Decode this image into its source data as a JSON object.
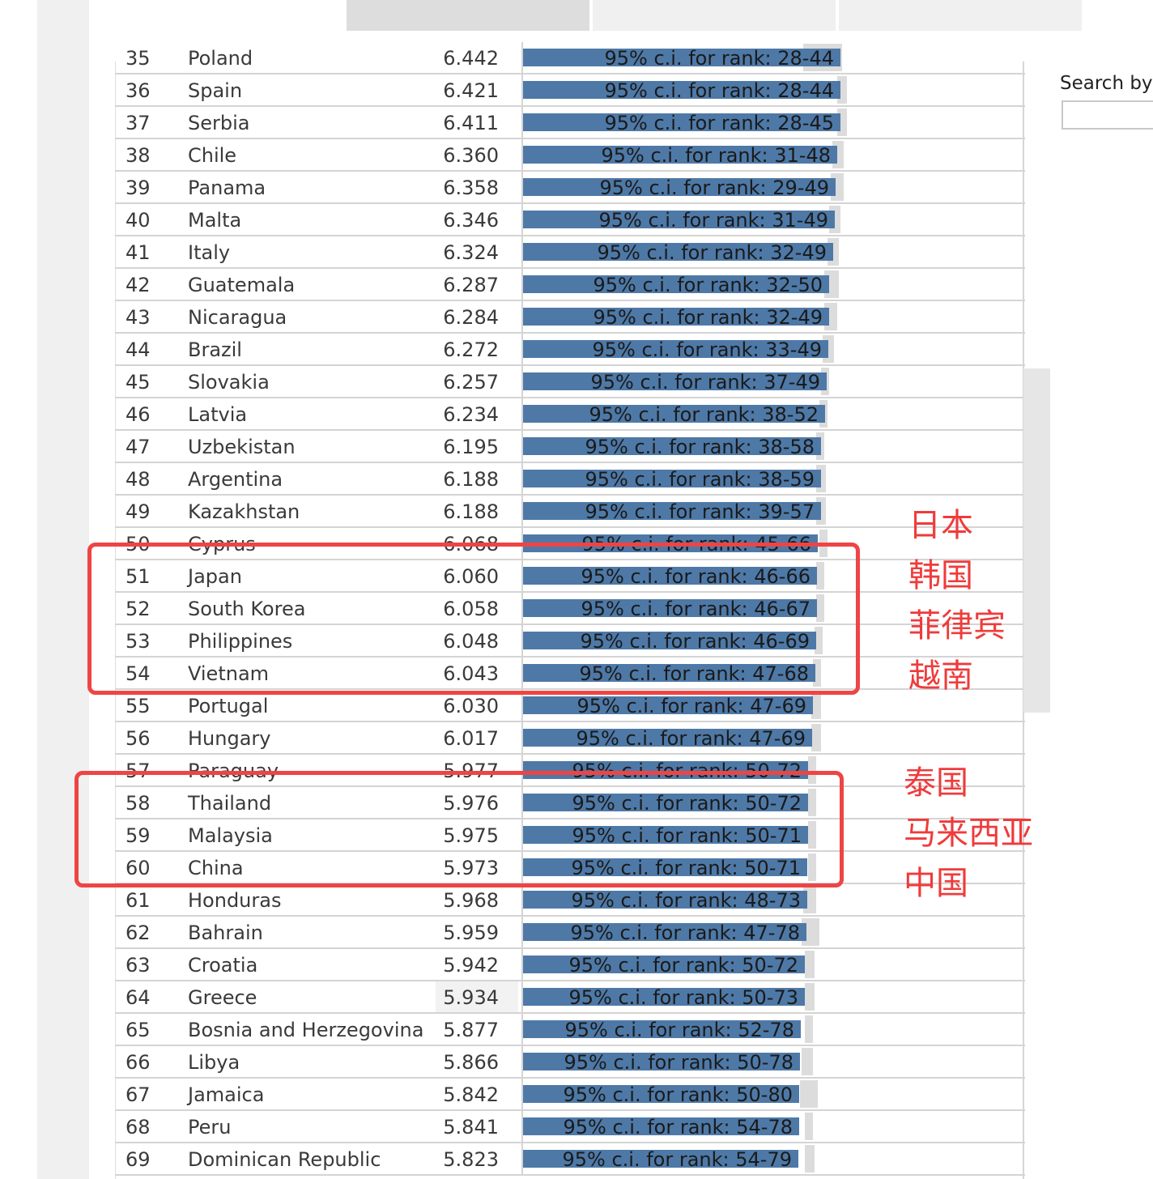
{
  "search": {
    "label": "Search by",
    "value": ""
  },
  "partial_top_row": {
    "rank": "35",
    "country": "Poland",
    "score": "6.442",
    "ci": "95% c.i. for rank: 28-44"
  },
  "rows": [
    {
      "rank": "36",
      "country": "Spain",
      "score": "6.421",
      "ci": "95% c.i. for rank: 28-44"
    },
    {
      "rank": "37",
      "country": "Serbia",
      "score": "6.411",
      "ci": "95% c.i. for rank: 28-45"
    },
    {
      "rank": "38",
      "country": "Chile",
      "score": "6.360",
      "ci": "95% c.i. for rank: 31-48"
    },
    {
      "rank": "39",
      "country": "Panama",
      "score": "6.358",
      "ci": "95% c.i. for rank: 29-49"
    },
    {
      "rank": "40",
      "country": "Malta",
      "score": "6.346",
      "ci": "95% c.i. for rank: 31-49"
    },
    {
      "rank": "41",
      "country": "Italy",
      "score": "6.324",
      "ci": "95% c.i. for rank: 32-49"
    },
    {
      "rank": "42",
      "country": "Guatemala",
      "score": "6.287",
      "ci": "95% c.i. for rank: 32-50"
    },
    {
      "rank": "43",
      "country": "Nicaragua",
      "score": "6.284",
      "ci": "95% c.i. for rank: 32-49"
    },
    {
      "rank": "44",
      "country": "Brazil",
      "score": "6.272",
      "ci": "95% c.i. for rank: 33-49"
    },
    {
      "rank": "45",
      "country": "Slovakia",
      "score": "6.257",
      "ci": "95% c.i. for rank: 37-49"
    },
    {
      "rank": "46",
      "country": "Latvia",
      "score": "6.234",
      "ci": "95% c.i. for rank: 38-52"
    },
    {
      "rank": "47",
      "country": "Uzbekistan",
      "score": "6.195",
      "ci": "95% c.i. for rank: 38-58"
    },
    {
      "rank": "48",
      "country": "Argentina",
      "score": "6.188",
      "ci": "95% c.i. for rank: 38-59"
    },
    {
      "rank": "49",
      "country": "Kazakhstan",
      "score": "6.188",
      "ci": "95% c.i. for rank: 39-57"
    },
    {
      "rank": "50",
      "country": "Cyprus",
      "score": "6.068",
      "ci": "95% c.i. for rank: 45-66"
    },
    {
      "rank": "51",
      "country": "Japan",
      "score": "6.060",
      "ci": "95% c.i. for rank: 46-66"
    },
    {
      "rank": "52",
      "country": "South Korea",
      "score": "6.058",
      "ci": "95% c.i. for rank: 46-67"
    },
    {
      "rank": "53",
      "country": "Philippines",
      "score": "6.048",
      "ci": "95% c.i. for rank: 46-69"
    },
    {
      "rank": "54",
      "country": "Vietnam",
      "score": "6.043",
      "ci": "95% c.i. for rank: 47-68"
    },
    {
      "rank": "55",
      "country": "Portugal",
      "score": "6.030",
      "ci": "95% c.i. for rank: 47-69"
    },
    {
      "rank": "56",
      "country": "Hungary",
      "score": "6.017",
      "ci": "95% c.i. for rank: 47-69"
    },
    {
      "rank": "57",
      "country": "Paraguay",
      "score": "5.977",
      "ci": "95% c.i. for rank: 50-72"
    },
    {
      "rank": "58",
      "country": "Thailand",
      "score": "5.976",
      "ci": "95% c.i. for rank: 50-72"
    },
    {
      "rank": "59",
      "country": "Malaysia",
      "score": "5.975",
      "ci": "95% c.i. for rank: 50-71"
    },
    {
      "rank": "60",
      "country": "China",
      "score": "5.973",
      "ci": "95% c.i. for rank: 50-71"
    },
    {
      "rank": "61",
      "country": "Honduras",
      "score": "5.968",
      "ci": "95% c.i. for rank: 48-73"
    },
    {
      "rank": "62",
      "country": "Bahrain",
      "score": "5.959",
      "ci": "95% c.i. for rank: 47-78"
    },
    {
      "rank": "63",
      "country": "Croatia",
      "score": "5.942",
      "ci": "95% c.i. for rank: 50-72"
    },
    {
      "rank": "64",
      "country": "Greece",
      "score": "5.934",
      "ci": "95% c.i. for rank: 50-73",
      "hover": true
    },
    {
      "rank": "65",
      "country": "Bosnia and Herzegovina",
      "score": "5.877",
      "ci": "95% c.i. for rank: 52-78"
    },
    {
      "rank": "66",
      "country": "Libya",
      "score": "5.866",
      "ci": "95% c.i. for rank: 50-78"
    },
    {
      "rank": "67",
      "country": "Jamaica",
      "score": "5.842",
      "ci": "95% c.i. for rank: 50-80"
    },
    {
      "rank": "68",
      "country": "Peru",
      "score": "5.841",
      "ci": "95% c.i. for rank: 54-78"
    },
    {
      "rank": "69",
      "country": "Dominican Republic",
      "score": "5.823",
      "ci": "95% c.i. for rank: 54-79"
    }
  ],
  "annotations": [
    {
      "lines": [
        "日本",
        "韩国",
        "菲律宾",
        "越南"
      ]
    },
    {
      "lines": [
        "泰国",
        "马来西亚",
        "中国"
      ]
    }
  ],
  "colors": {
    "bar": "#4e79a7",
    "ci": "#dcdcdc",
    "annotation": "#ef4444"
  }
}
